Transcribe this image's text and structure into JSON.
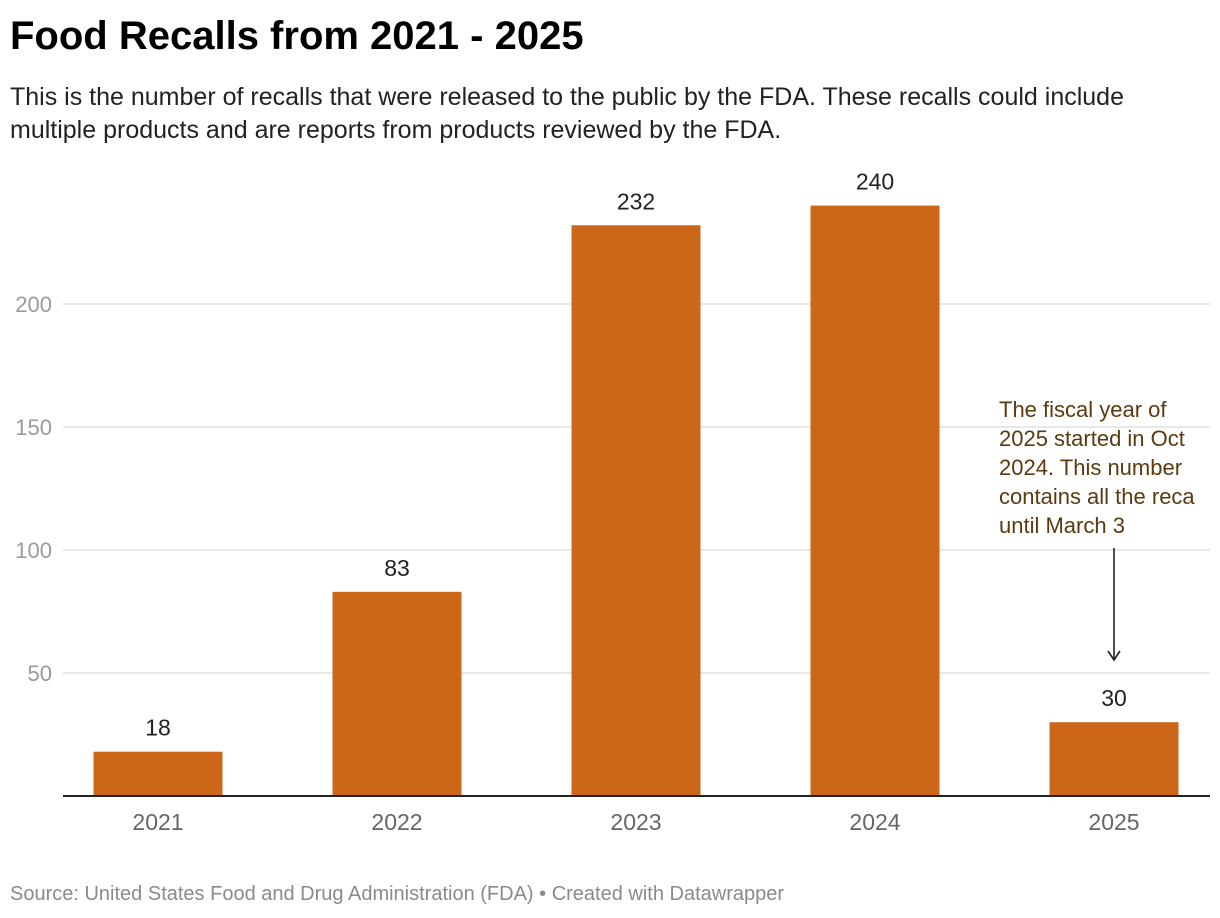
{
  "chart_data": {
    "type": "bar",
    "title": "Food Recalls from 2021 - 2025",
    "subtitle": "This is the number of recalls that were released to the public by the FDA. These recalls could include multiple products and are reports from products reviewed by the FDA.",
    "categories": [
      "2021",
      "2022",
      "2023",
      "2024",
      "2025"
    ],
    "values": [
      18,
      83,
      232,
      240,
      30
    ],
    "value_labels": [
      "18",
      "83",
      "232",
      "240",
      "30"
    ],
    "y_ticks": [
      50,
      100,
      150,
      200
    ],
    "y_tick_labels": [
      "50",
      "100",
      "150",
      "200"
    ],
    "ylim": [
      0,
      240
    ],
    "grid": true,
    "legend": "none",
    "bar_color": "#cc6719",
    "annotation": {
      "category": "2025",
      "lines": [
        "The fiscal year of",
        "2025 started in Oct",
        "2024. This number",
        "contains all the reca",
        "until March 3"
      ]
    },
    "source": "Source: United States Food and Drug Administration (FDA) • Created with Datawrapper"
  }
}
